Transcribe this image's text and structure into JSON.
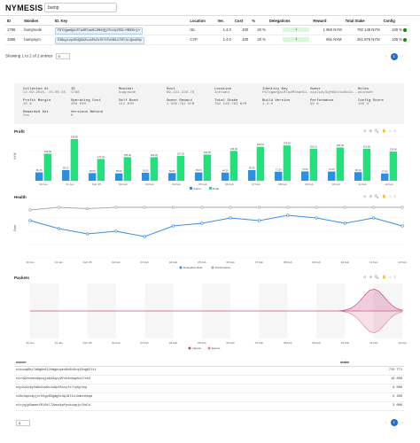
{
  "brand": "NYMESIS",
  "search": {
    "value": "bump"
  },
  "nodes_table": {
    "headers": [
      "ID",
      "Moniker",
      "ID. Key",
      "Location",
      "Ver.",
      "Cost",
      "%",
      "Delegations",
      "Reward",
      "Total Stake",
      "Config"
    ],
    "rows": [
      {
        "id": "1796",
        "moniker": "bumpnode",
        "key": "F67dgaeQaLR7adMTaaH11MhHQjY5vdyYEDLrMKEHcjn",
        "location": "ISL",
        "ver": "1.4.0",
        "cost": "400",
        "pct": "20 %",
        "delegations": "1",
        "reward": "1 960 NYM",
        "stake": "792 148 NYM",
        "config": "100 %"
      },
      {
        "id": "1886",
        "moniker": "bumpnym",
        "key": "E3BqyLzp2RdQ6dZvzkPkZsfEYCFnHB1s7VFUiLQkoENp",
        "location": "CYP",
        "ver": "1.4.0",
        "cost": "400",
        "pct": "20 %",
        "delegations": "1",
        "reward": "691 NYM",
        "stake": "251 976 NYM",
        "config": "100 %"
      }
    ]
  },
  "pager": {
    "showing": "Showing 1 to 2 of 2 entries",
    "page_size": "5",
    "prev": "‹",
    "page": "1",
    "next": "›"
  },
  "details": [
    {
      "label": "Collected At",
      "value": "12.02.2025, 15:05:45"
    },
    {
      "label": "ID",
      "value": "1796"
    },
    {
      "label": "Moniker",
      "value": "bumpnode"
    },
    {
      "label": "Host",
      "value": "89.221.229.76"
    },
    {
      "label": "Location",
      "value": "Iceland"
    },
    {
      "label": "Identity Key",
      "value": "F67dgaeQaLR7adMTaaH11..."
    },
    {
      "label": "Owner",
      "value": "n1p2u2y3qfm9v2vw6x2u..."
    },
    {
      "label": "Roles",
      "value": "mixnode"
    },
    {
      "label": "Profit Margin",
      "value": "20 %"
    },
    {
      "label": "Operating Cost",
      "value": "400 NYM"
    },
    {
      "label": "Self Bond",
      "value": "111 NYM"
    },
    {
      "label": "Owner Reward",
      "value": "1 060.791 NYM"
    },
    {
      "label": "Total Stake",
      "value": "792 148.763 NYM"
    },
    {
      "label": "Build Version",
      "value": "1.4.0"
    },
    {
      "label": "Performance",
      "value": "99 %"
    },
    {
      "label": "Config Score",
      "value": "100 %"
    },
    {
      "label": "Rewarded Set",
      "value": "Yes"
    },
    {
      "label": "Versions Behind",
      "value": "0"
    }
  ],
  "profit_chart": {
    "title": "Profit",
    "legend": [
      "Owner",
      "Node"
    ]
  },
  "health_chart": {
    "title": "Health",
    "legend": [
      "Delegation Rate",
      "Performance"
    ]
  },
  "packets_chart": {
    "title": "Packets",
    "legend": [
      "Ingress",
      "Egress"
    ]
  },
  "owners_table": {
    "headers": [
      "owner",
      "stake"
    ],
    "rows": [
      {
        "owner": "n1suuq6hy7a0g9n6l2emgexpeu8v8h9rq33ng02ltt",
        "stake": "710 771"
      },
      {
        "owner": "n1rh92vvmsu6pcqja842opy9fvh4d4wp5u27ch2",
        "stake": "10 000"
      },
      {
        "owner": "n1p2u2y3qfm9v2vw6x2u8p55sxyfx7rp5p7mq",
        "stake": "9 000"
      },
      {
        "owner": "n18c3qnv4pjvr55gv65gmg5c3ql874xlkmnnhhqd",
        "stake": "5 300"
      },
      {
        "owner": "n1ryqjp5wmetf0l0tl72ewxkpfpvkdupjxl0dlk",
        "stake": "3 000"
      }
    ]
  },
  "pager2": {
    "page_size": "5",
    "prev": "‹",
    "page": "1",
    "next": "›"
  },
  "chart_data": [
    {
      "type": "bar",
      "title": "Profit",
      "ylabel": "NYM",
      "categories": [
        "30 Jan",
        "31 Jan",
        "Feb '25",
        "02 Feb",
        "03 Feb",
        "04 Feb",
        "05 Feb",
        "06 Feb",
        "07 Feb",
        "08 Feb",
        "09 Feb",
        "10 Feb",
        "11 Feb",
        "12 Feb"
      ],
      "series": [
        {
          "name": "Owner",
          "values": [
            66.15,
            84.1,
            60.6,
            58.3,
            63.6,
            60.9,
            65.6,
            64.3,
            84.3,
            71.3,
            73.5,
            72.3,
            68.1,
            57.5
          ]
        },
        {
          "name": "Node",
          "values": [
            213.9,
            328.8,
            172.4,
            185.9,
            186.2,
            197.2,
            206.9,
            236.0,
            268.1,
            278.5,
            253.1,
            262.3,
            251.8,
            230.6
          ]
        }
      ]
    },
    {
      "type": "line",
      "title": "Health",
      "ylabel": "Rate",
      "categories": [
        "30 Jan",
        "31 Jan",
        "Feb '25",
        "02 Feb",
        "03 Feb",
        "04 Feb",
        "05 Feb",
        "06 Feb",
        "07 Feb",
        "08 Feb",
        "09 Feb",
        "10 Feb",
        "11 Feb",
        "12 Feb"
      ],
      "series": [
        {
          "name": "Delegation Rate",
          "values": [
            88,
            82,
            78,
            80,
            76,
            84,
            86,
            90,
            88,
            92,
            90,
            86,
            90,
            84
          ]
        },
        {
          "name": "Performance",
          "values": [
            96,
            98,
            97,
            98,
            98,
            98,
            98,
            98,
            98,
            98,
            98,
            98,
            98,
            98
          ]
        }
      ]
    },
    {
      "type": "area",
      "title": "Packets",
      "categories": [
        "30 Jan",
        "31 Jan",
        "Feb '25",
        "02 Feb",
        "03 Feb",
        "04 Feb",
        "05 Feb",
        "06 Feb",
        "07 Feb",
        "08 Feb",
        "09 Feb",
        "10 Feb",
        "11 Feb",
        "12 Feb"
      ],
      "series": [
        {
          "name": "Ingress",
          "values": [
            0,
            0,
            0,
            0,
            0,
            0,
            0,
            0,
            0,
            0,
            0,
            0,
            0.8,
            0
          ]
        },
        {
          "name": "Egress",
          "values": [
            0,
            0,
            0,
            0,
            0,
            0,
            0,
            0,
            0,
            0,
            0,
            0,
            -0.8,
            0
          ]
        }
      ]
    }
  ]
}
